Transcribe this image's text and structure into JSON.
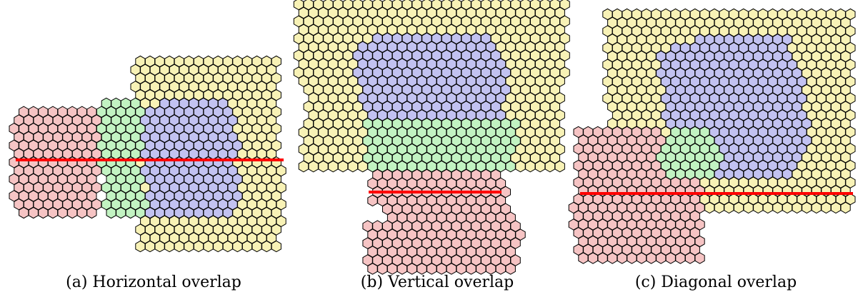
{
  "colors": {
    "red": "#f6c4c4",
    "green": "#c2f3c2",
    "blue": "#c2c2f1",
    "yellow": "#f8f2b6",
    "stroke": "#000000",
    "cut": "#ff0000"
  },
  "panels": [
    {
      "id": "a",
      "caption": "(a) Horizontal overlap"
    },
    {
      "id": "b",
      "caption": "(b) Vertical overlap"
    },
    {
      "id": "c",
      "caption": "(c) Diagonal overlap"
    }
  ]
}
